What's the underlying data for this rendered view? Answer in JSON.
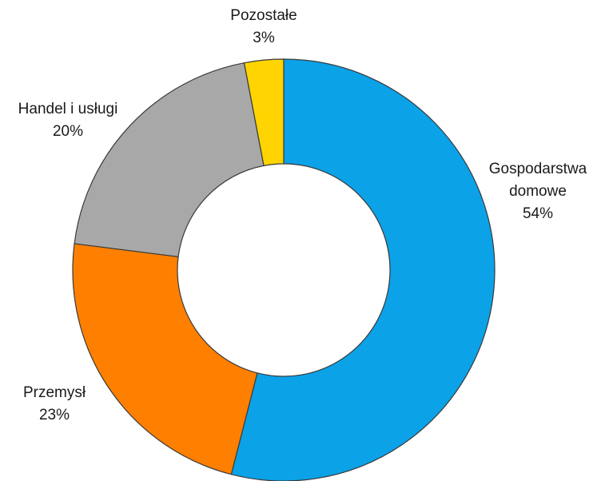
{
  "chart_data": {
    "type": "donut",
    "categories": [
      "Gospodarstwa domowe",
      "Przemysł",
      "Handel i usługi",
      "Pozostałe"
    ],
    "values": [
      54,
      23,
      20,
      3
    ],
    "value_labels": [
      "54%",
      "23%",
      "20%",
      "3%"
    ],
    "colors": [
      "#0ba2e8",
      "#ff8000",
      "#a8a8a8",
      "#ffd400"
    ]
  }
}
